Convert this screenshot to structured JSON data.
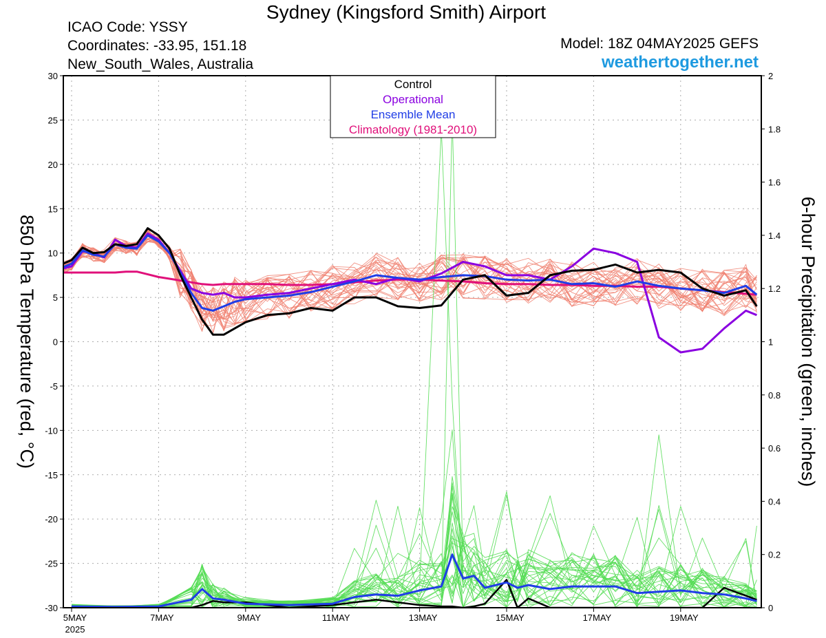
{
  "header": {
    "title": "Sydney (Kingsford Smith) Airport",
    "icao": "ICAO Code: YSSY",
    "coordinates": "Coordinates: -33.95, 151.18",
    "region": "New_South_Wales, Australia",
    "model": "Model: 18Z 04MAY2025 GEFS",
    "site": "weathertogether.net"
  },
  "colors": {
    "member_temp": "#f08070",
    "member_precip": "#55dd55",
    "control": "#000000",
    "operational": "#8a00e0",
    "ensemble_mean": "#1f3de6",
    "climatology": "#e0107a"
  },
  "chart_data": {
    "type": "line",
    "title": "Sydney (Kingsford Smith) Airport",
    "ylabel": "850 hPa Temperature (red, °C)",
    "y2label": "6-hour Precipitation (green, inches)",
    "ylim": [
      -30,
      30
    ],
    "y2lim": [
      0,
      2
    ],
    "xlim_days": [
      0,
      16.0
    ],
    "yticks": [
      "30",
      "25",
      "20",
      "15",
      "10",
      "5",
      "0",
      "-5",
      "-10",
      "-15",
      "-20",
      "-25",
      "-30"
    ],
    "y2ticks": [
      "2",
      "1.8",
      "1.6",
      "1.4",
      "1.2",
      "1",
      "0.8",
      "0.6",
      "0.4",
      "0.2",
      "0"
    ],
    "xticks": [
      {
        "day": 0,
        "label": "5MAY",
        "sub": "2025"
      },
      {
        "day": 2,
        "label": "7MAY",
        "sub": ""
      },
      {
        "day": 4,
        "label": "9MAY",
        "sub": ""
      },
      {
        "day": 6,
        "label": "11MAY",
        "sub": ""
      },
      {
        "day": 8,
        "label": "13MAY",
        "sub": ""
      },
      {
        "day": 10,
        "label": "15MAY",
        "sub": ""
      },
      {
        "day": 12,
        "label": "17MAY",
        "sub": ""
      },
      {
        "day": 14,
        "label": "19MAY",
        "sub": ""
      }
    ],
    "legend": [
      "Control",
      "Operational",
      "Ensemble Mean",
      "Climatology (1981-2010)"
    ],
    "legend_position": "top-center",
    "grid": true,
    "temperature_days": [
      -0.25,
      0.0,
      0.25,
      0.5,
      0.75,
      1.0,
      1.25,
      1.5,
      1.75,
      2.0,
      2.25,
      2.5,
      2.75,
      3.0,
      3.25,
      3.5,
      3.75,
      4.0,
      4.5,
      5.0,
      5.5,
      6.0,
      6.5,
      7.0,
      7.5,
      8.0,
      8.5,
      9.0,
      9.5,
      10.0,
      10.5,
      11.0,
      11.5,
      12.0,
      12.5,
      13.0,
      13.5,
      14.0,
      14.5,
      15.0,
      15.5,
      15.75
    ],
    "temperature_series": [
      {
        "name": "Control",
        "values": [
          8.7,
          9.2,
          10.6,
          10.0,
          10.1,
          11.0,
          10.8,
          11.0,
          12.8,
          12.0,
          10.5,
          7.5,
          5.0,
          2.5,
          0.8,
          0.8,
          1.5,
          2.2,
          3.0,
          3.2,
          3.8,
          3.5,
          5.0,
          5.0,
          4.0,
          3.8,
          4.1,
          7.0,
          7.5,
          5.2,
          5.5,
          7.5,
          8.0,
          8.1,
          8.7,
          7.8,
          8.1,
          7.8,
          6.0,
          5.2,
          5.8,
          4.0
        ]
      },
      {
        "name": "Operational",
        "values": [
          8.2,
          8.5,
          10.2,
          10.0,
          9.5,
          11.5,
          10.8,
          10.6,
          12.2,
          11.5,
          10.0,
          8.0,
          6.0,
          5.5,
          5.3,
          5.5,
          5.0,
          5.0,
          5.3,
          5.5,
          6.0,
          6.5,
          7.0,
          6.5,
          7.2,
          6.8,
          7.7,
          9.0,
          8.5,
          7.5,
          7.5,
          7.0,
          8.5,
          10.5,
          10.0,
          9.0,
          0.5,
          -1.2,
          -0.8,
          1.5,
          3.5,
          3.0
        ]
      },
      {
        "name": "Ensemble Mean",
        "values": [
          8.3,
          8.8,
          10.3,
          9.8,
          9.6,
          11.0,
          10.6,
          10.5,
          12.0,
          11.3,
          10.0,
          7.8,
          5.5,
          3.8,
          3.5,
          4.0,
          4.5,
          4.8,
          5.0,
          5.2,
          5.6,
          6.2,
          6.8,
          7.5,
          7.2,
          7.0,
          7.3,
          7.5,
          7.4,
          7.0,
          6.9,
          7.0,
          6.5,
          6.6,
          6.2,
          6.8,
          6.3,
          6.0,
          5.8,
          5.5,
          6.3,
          5.3
        ]
      },
      {
        "name": "Climatology (1981-2010)",
        "values": [
          7.8,
          7.8,
          7.8,
          7.8,
          7.8,
          7.8,
          7.9,
          7.9,
          7.6,
          7.3,
          7.1,
          6.9,
          6.7,
          6.5,
          6.4,
          6.5,
          6.5,
          6.5,
          6.5,
          6.4,
          6.4,
          6.5,
          6.7,
          6.9,
          7.0,
          7.0,
          6.9,
          6.8,
          6.6,
          6.5,
          6.5,
          6.4,
          6.4,
          6.3,
          6.3,
          6.2,
          6.2,
          6.0,
          5.8,
          5.6,
          5.4,
          5.3
        ]
      }
    ],
    "precip_days": [
      0.0,
      1.0,
      2.0,
      2.75,
      3.0,
      3.25,
      3.5,
      4.0,
      5.0,
      6.0,
      6.5,
      7.0,
      7.5,
      8.0,
      8.5,
      8.75,
      9.0,
      9.25,
      9.5,
      10.0,
      10.25,
      10.5,
      11.0,
      11.5,
      12.0,
      12.5,
      13.0,
      13.5,
      14.0,
      14.5,
      15.0,
      15.5,
      15.75
    ],
    "precip_series": [
      {
        "name": "Control",
        "values": [
          0,
          0,
          0,
          0,
          0.01,
          0.025,
          0.02,
          0.02,
          0,
          0.01,
          0.02,
          0.03,
          0.02,
          0.01,
          0.005,
          0.005,
          0,
          0.005,
          0.015,
          0.105,
          0,
          0.035,
          0,
          0,
          0,
          0,
          0,
          0,
          0,
          0,
          0.075,
          0.045,
          0.03
        ]
      },
      {
        "name": "Ensemble Mean",
        "values": [
          0.005,
          0.003,
          0.005,
          0.03,
          0.07,
          0.035,
          0.03,
          0.015,
          0.01,
          0.015,
          0.04,
          0.05,
          0.045,
          0.065,
          0.08,
          0.2,
          0.11,
          0.12,
          0.075,
          0.095,
          0.075,
          0.085,
          0.07,
          0.08,
          0.08,
          0.08,
          0.055,
          0.06,
          0.065,
          0.055,
          0.05,
          0.035,
          0.025
        ]
      }
    ]
  }
}
